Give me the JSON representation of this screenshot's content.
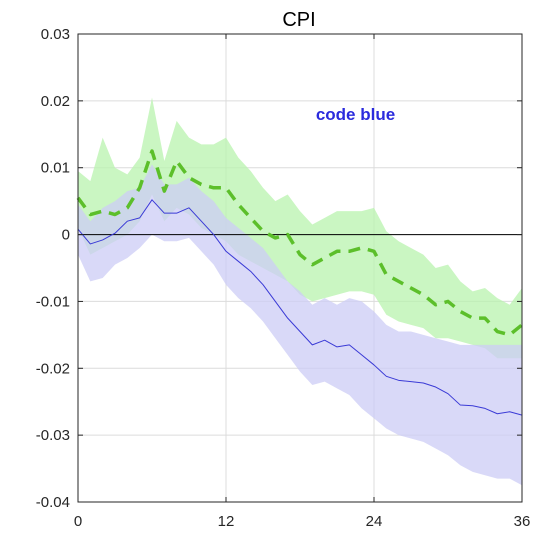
{
  "chart_data": {
    "type": "line",
    "title": "CPI",
    "xlabel": "",
    "ylabel": "",
    "xlim": [
      0,
      36
    ],
    "ylim": [
      -0.04,
      0.03
    ],
    "xticks": [
      0,
      12,
      24,
      36
    ],
    "yticks": [
      -0.04,
      -0.03,
      -0.02,
      -0.01,
      0,
      0.01,
      0.02,
      0.03
    ],
    "ytick_labels": [
      "-0.04",
      "-0.03",
      "-0.02",
      "-0.01",
      "0",
      "0.01",
      "0.02",
      "0.03"
    ],
    "xtick_labels": [
      "0",
      "12",
      "24",
      "36"
    ],
    "grid": true,
    "zero_line": true,
    "annotation": {
      "text": "code blue",
      "x": 22.5,
      "y": 0.018,
      "color": "#2b2bdd"
    },
    "x": [
      0,
      1,
      2,
      3,
      4,
      5,
      6,
      7,
      8,
      9,
      10,
      11,
      12,
      13,
      14,
      15,
      16,
      17,
      18,
      19,
      20,
      21,
      22,
      23,
      24,
      25,
      26,
      27,
      28,
      29,
      30,
      31,
      32,
      33,
      34,
      35,
      36
    ],
    "series": [
      {
        "style": "dashed",
        "color": "#5cbf2a",
        "band_color": "#b8f3ad",
        "values": [
          0.0055,
          0.003,
          0.0035,
          0.003,
          0.004,
          0.007,
          0.0125,
          0.0065,
          0.011,
          0.0085,
          0.0075,
          0.007,
          0.007,
          0.0045,
          0.0025,
          0.0005,
          -0.0005,
          0.0,
          -0.003,
          -0.0045,
          -0.0035,
          -0.0025,
          -0.0025,
          -0.002,
          -0.0025,
          -0.006,
          -0.007,
          -0.008,
          -0.009,
          -0.0105,
          -0.01,
          -0.0115,
          -0.0125,
          -0.0125,
          -0.0145,
          -0.015,
          -0.0135
        ],
        "lower": [
          0.001,
          -0.003,
          -0.002,
          -0.001,
          0.0,
          0.002,
          0.006,
          0.002,
          0.004,
          0.003,
          0.001,
          0.0,
          -0.001,
          -0.003,
          -0.004,
          -0.005,
          -0.006,
          -0.007,
          -0.009,
          -0.01,
          -0.0095,
          -0.009,
          -0.0085,
          -0.0085,
          -0.009,
          -0.012,
          -0.013,
          -0.0135,
          -0.014,
          -0.0155,
          -0.0155,
          -0.016,
          -0.0165,
          -0.017,
          -0.0185,
          -0.0185,
          -0.0185
        ],
        "upper": [
          0.0095,
          0.008,
          0.0145,
          0.01,
          0.009,
          0.0115,
          0.0205,
          0.011,
          0.017,
          0.0145,
          0.0135,
          0.0135,
          0.0145,
          0.0115,
          0.0095,
          0.007,
          0.005,
          0.006,
          0.0035,
          0.0015,
          0.0025,
          0.0035,
          0.0035,
          0.0035,
          0.004,
          0.0005,
          -0.001,
          -0.002,
          -0.003,
          -0.005,
          -0.0045,
          -0.007,
          -0.0085,
          -0.008,
          -0.0095,
          -0.0105,
          -0.008
        ]
      },
      {
        "style": "solid",
        "color": "#3a3ad6",
        "band_color": "#ccccf6",
        "values": [
          0.0008,
          -0.0014,
          -0.0008,
          0.0002,
          0.002,
          0.0025,
          0.0052,
          0.0032,
          0.0032,
          0.004,
          0.002,
          0.0,
          -0.0025,
          -0.004,
          -0.0055,
          -0.0075,
          -0.01,
          -0.0125,
          -0.0145,
          -0.0165,
          -0.0158,
          -0.0168,
          -0.0165,
          -0.018,
          -0.0195,
          -0.0212,
          -0.0218,
          -0.022,
          -0.0222,
          -0.0228,
          -0.0238,
          -0.0255,
          -0.0256,
          -0.026,
          -0.0268,
          -0.0265,
          -0.027
        ],
        "lower": [
          -0.003,
          -0.007,
          -0.0065,
          -0.0045,
          -0.0035,
          -0.002,
          0.0,
          -0.001,
          -0.001,
          -0.0005,
          -0.0025,
          -0.0045,
          -0.0075,
          -0.0095,
          -0.011,
          -0.013,
          -0.0155,
          -0.018,
          -0.0205,
          -0.0225,
          -0.022,
          -0.023,
          -0.024,
          -0.026,
          -0.0275,
          -0.029,
          -0.03,
          -0.0305,
          -0.031,
          -0.032,
          -0.033,
          -0.0345,
          -0.0355,
          -0.036,
          -0.0365,
          -0.0365,
          -0.0375
        ],
        "upper": [
          0.0045,
          0.002,
          0.004,
          0.005,
          0.0065,
          0.007,
          0.0105,
          0.0075,
          0.0075,
          0.0085,
          0.0065,
          0.005,
          0.0025,
          0.001,
          -0.0005,
          -0.002,
          -0.0045,
          -0.007,
          -0.0085,
          -0.0105,
          -0.0095,
          -0.0105,
          -0.0095,
          -0.01,
          -0.0115,
          -0.0135,
          -0.0145,
          -0.0145,
          -0.015,
          -0.0155,
          -0.016,
          -0.0165,
          -0.0165,
          -0.0165,
          -0.0165,
          -0.0165,
          -0.0165
        ]
      }
    ]
  }
}
